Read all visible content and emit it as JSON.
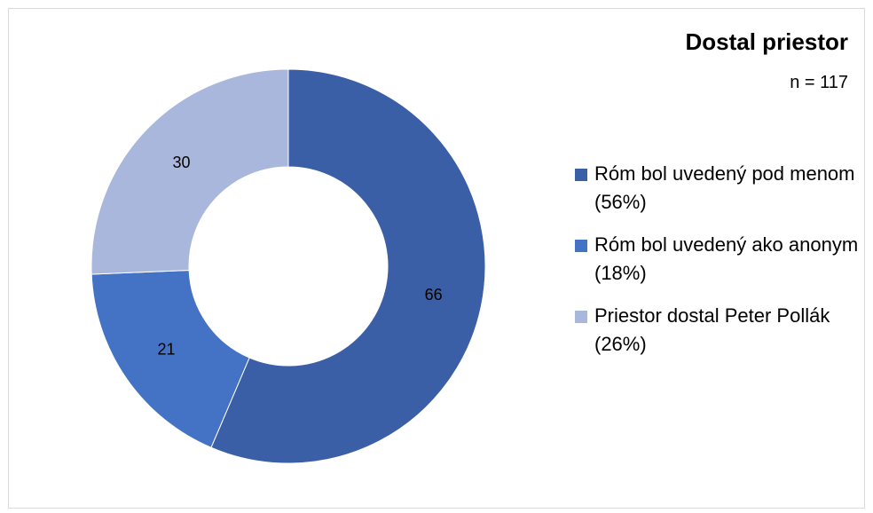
{
  "chart_data": {
    "type": "pie",
    "donut": true,
    "title": "Dostal priestor",
    "subtitle": "n = 117",
    "legend_position": "right",
    "slices": [
      {
        "label": "Róm bol uvedený pod menom (56%)",
        "value": 66,
        "value_label": "66",
        "color": "#3A5FA6"
      },
      {
        "label": "Róm bol uvedený ako anonym (18%)",
        "value": 21,
        "value_label": "21",
        "color": "#4472C4"
      },
      {
        "label": "Priestor dostal Peter Pollák (26%)",
        "value": 30,
        "value_label": "30",
        "color": "#A9B7DC"
      }
    ]
  }
}
